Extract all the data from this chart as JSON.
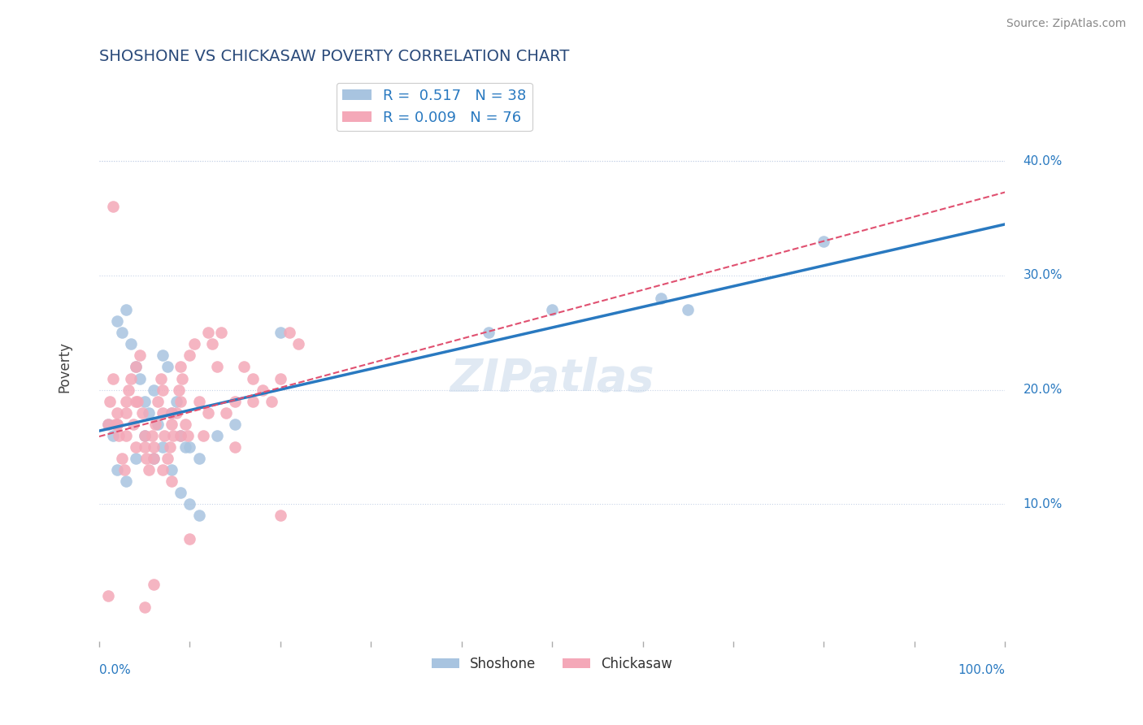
{
  "title": "SHOSHONE VS CHICKASAW POVERTY CORRELATION CHART",
  "source": "Source: ZipAtlas.com",
  "ylabel": "Poverty",
  "xlim": [
    0,
    100
  ],
  "ylim": [
    -2,
    47
  ],
  "yticks": [
    10,
    20,
    30,
    40
  ],
  "ytick_labels": [
    "10.0%",
    "20.0%",
    "30.0%",
    "40.0%"
  ],
  "shoshone_R": 0.517,
  "shoshone_N": 38,
  "chickasaw_R": 0.009,
  "chickasaw_N": 76,
  "shoshone_color": "#a8c4e0",
  "chickasaw_color": "#f4a8b8",
  "shoshone_line_color": "#2979c0",
  "chickasaw_line_color": "#e05070",
  "background_color": "#ffffff",
  "grid_color": "#c8d4e8",
  "shoshone_x": [
    1.0,
    1.5,
    2.0,
    2.5,
    3.0,
    3.5,
    4.0,
    4.5,
    5.0,
    5.5,
    6.0,
    6.5,
    7.0,
    7.5,
    8.0,
    8.5,
    9.0,
    9.5,
    10.0,
    11.0,
    13.0,
    15.0,
    20.0,
    43.0,
    50.0,
    62.0,
    65.0,
    80.0,
    2.0,
    3.0,
    4.0,
    5.0,
    6.0,
    7.0,
    8.0,
    9.0,
    10.0,
    11.0
  ],
  "shoshone_y": [
    17.0,
    16.0,
    26.0,
    25.0,
    27.0,
    24.0,
    22.0,
    21.0,
    19.0,
    18.0,
    20.0,
    17.0,
    23.0,
    22.0,
    18.0,
    19.0,
    16.0,
    15.0,
    15.0,
    14.0,
    16.0,
    17.0,
    25.0,
    25.0,
    27.0,
    28.0,
    27.0,
    33.0,
    13.0,
    12.0,
    14.0,
    16.0,
    14.0,
    15.0,
    13.0,
    11.0,
    10.0,
    9.0
  ],
  "chickasaw_x": [
    1.0,
    1.2,
    1.5,
    1.8,
    2.0,
    2.2,
    2.5,
    2.8,
    3.0,
    3.2,
    3.5,
    3.8,
    4.0,
    4.2,
    4.5,
    4.8,
    5.0,
    5.2,
    5.5,
    5.8,
    6.0,
    6.2,
    6.5,
    6.8,
    7.0,
    7.2,
    7.5,
    7.8,
    8.0,
    8.2,
    8.5,
    8.8,
    9.0,
    9.2,
    9.5,
    9.8,
    10.0,
    10.5,
    11.0,
    11.5,
    12.0,
    12.5,
    13.0,
    13.5,
    14.0,
    15.0,
    16.0,
    17.0,
    18.0,
    19.0,
    20.0,
    21.0,
    22.0,
    1.5,
    2.0,
    3.0,
    4.0,
    5.0,
    6.0,
    7.0,
    8.0,
    9.0,
    5.0,
    10.0,
    15.0,
    12.0,
    17.0,
    20.0,
    8.0,
    7.0,
    9.0,
    6.0,
    3.0,
    4.0,
    2.0,
    1.0
  ],
  "chickasaw_y": [
    17.0,
    19.0,
    21.0,
    17.0,
    18.0,
    16.0,
    14.0,
    13.0,
    19.0,
    20.0,
    21.0,
    17.0,
    22.0,
    19.0,
    23.0,
    18.0,
    16.0,
    14.0,
    13.0,
    16.0,
    15.0,
    17.0,
    19.0,
    21.0,
    18.0,
    16.0,
    14.0,
    15.0,
    17.0,
    16.0,
    18.0,
    20.0,
    19.0,
    21.0,
    17.0,
    16.0,
    23.0,
    24.0,
    19.0,
    16.0,
    25.0,
    24.0,
    22.0,
    25.0,
    18.0,
    19.0,
    22.0,
    21.0,
    20.0,
    19.0,
    21.0,
    25.0,
    24.0,
    36.0,
    17.0,
    18.0,
    19.0,
    15.0,
    14.0,
    13.0,
    12.0,
    16.0,
    1.0,
    7.0,
    15.0,
    18.0,
    19.0,
    9.0,
    18.0,
    20.0,
    22.0,
    3.0,
    16.0,
    15.0,
    17.0,
    2.0
  ]
}
